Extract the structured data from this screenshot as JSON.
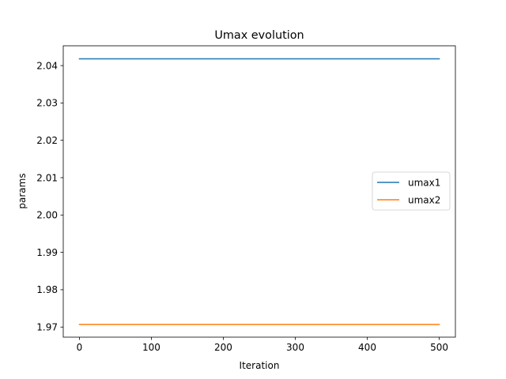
{
  "chart_data": {
    "type": "line",
    "title": "Umax evolution",
    "xlabel": "Iteration",
    "ylabel": "params",
    "xlim": [
      -22.5,
      522.5
    ],
    "ylim": [
      1.9673,
      2.0453
    ],
    "xticks": [
      0,
      100,
      200,
      300,
      400,
      500
    ],
    "xtick_labels": [
      "0",
      "100",
      "200",
      "300",
      "400",
      "500"
    ],
    "yticks": [
      1.97,
      1.98,
      1.99,
      2.0,
      2.01,
      2.02,
      2.03,
      2.04
    ],
    "ytick_labels": [
      "1.97",
      "1.98",
      "1.99",
      "2.00",
      "2.01",
      "2.02",
      "2.03",
      "2.04"
    ],
    "grid": false,
    "legend_position": "center-right",
    "series": [
      {
        "name": "umax1",
        "color": "#1f77b4",
        "x": [
          0,
          500
        ],
        "y": [
          2.0418,
          2.0418
        ]
      },
      {
        "name": "umax2",
        "color": "#ff7f0e",
        "x": [
          0,
          500
        ],
        "y": [
          1.9707,
          1.9707
        ]
      }
    ]
  }
}
